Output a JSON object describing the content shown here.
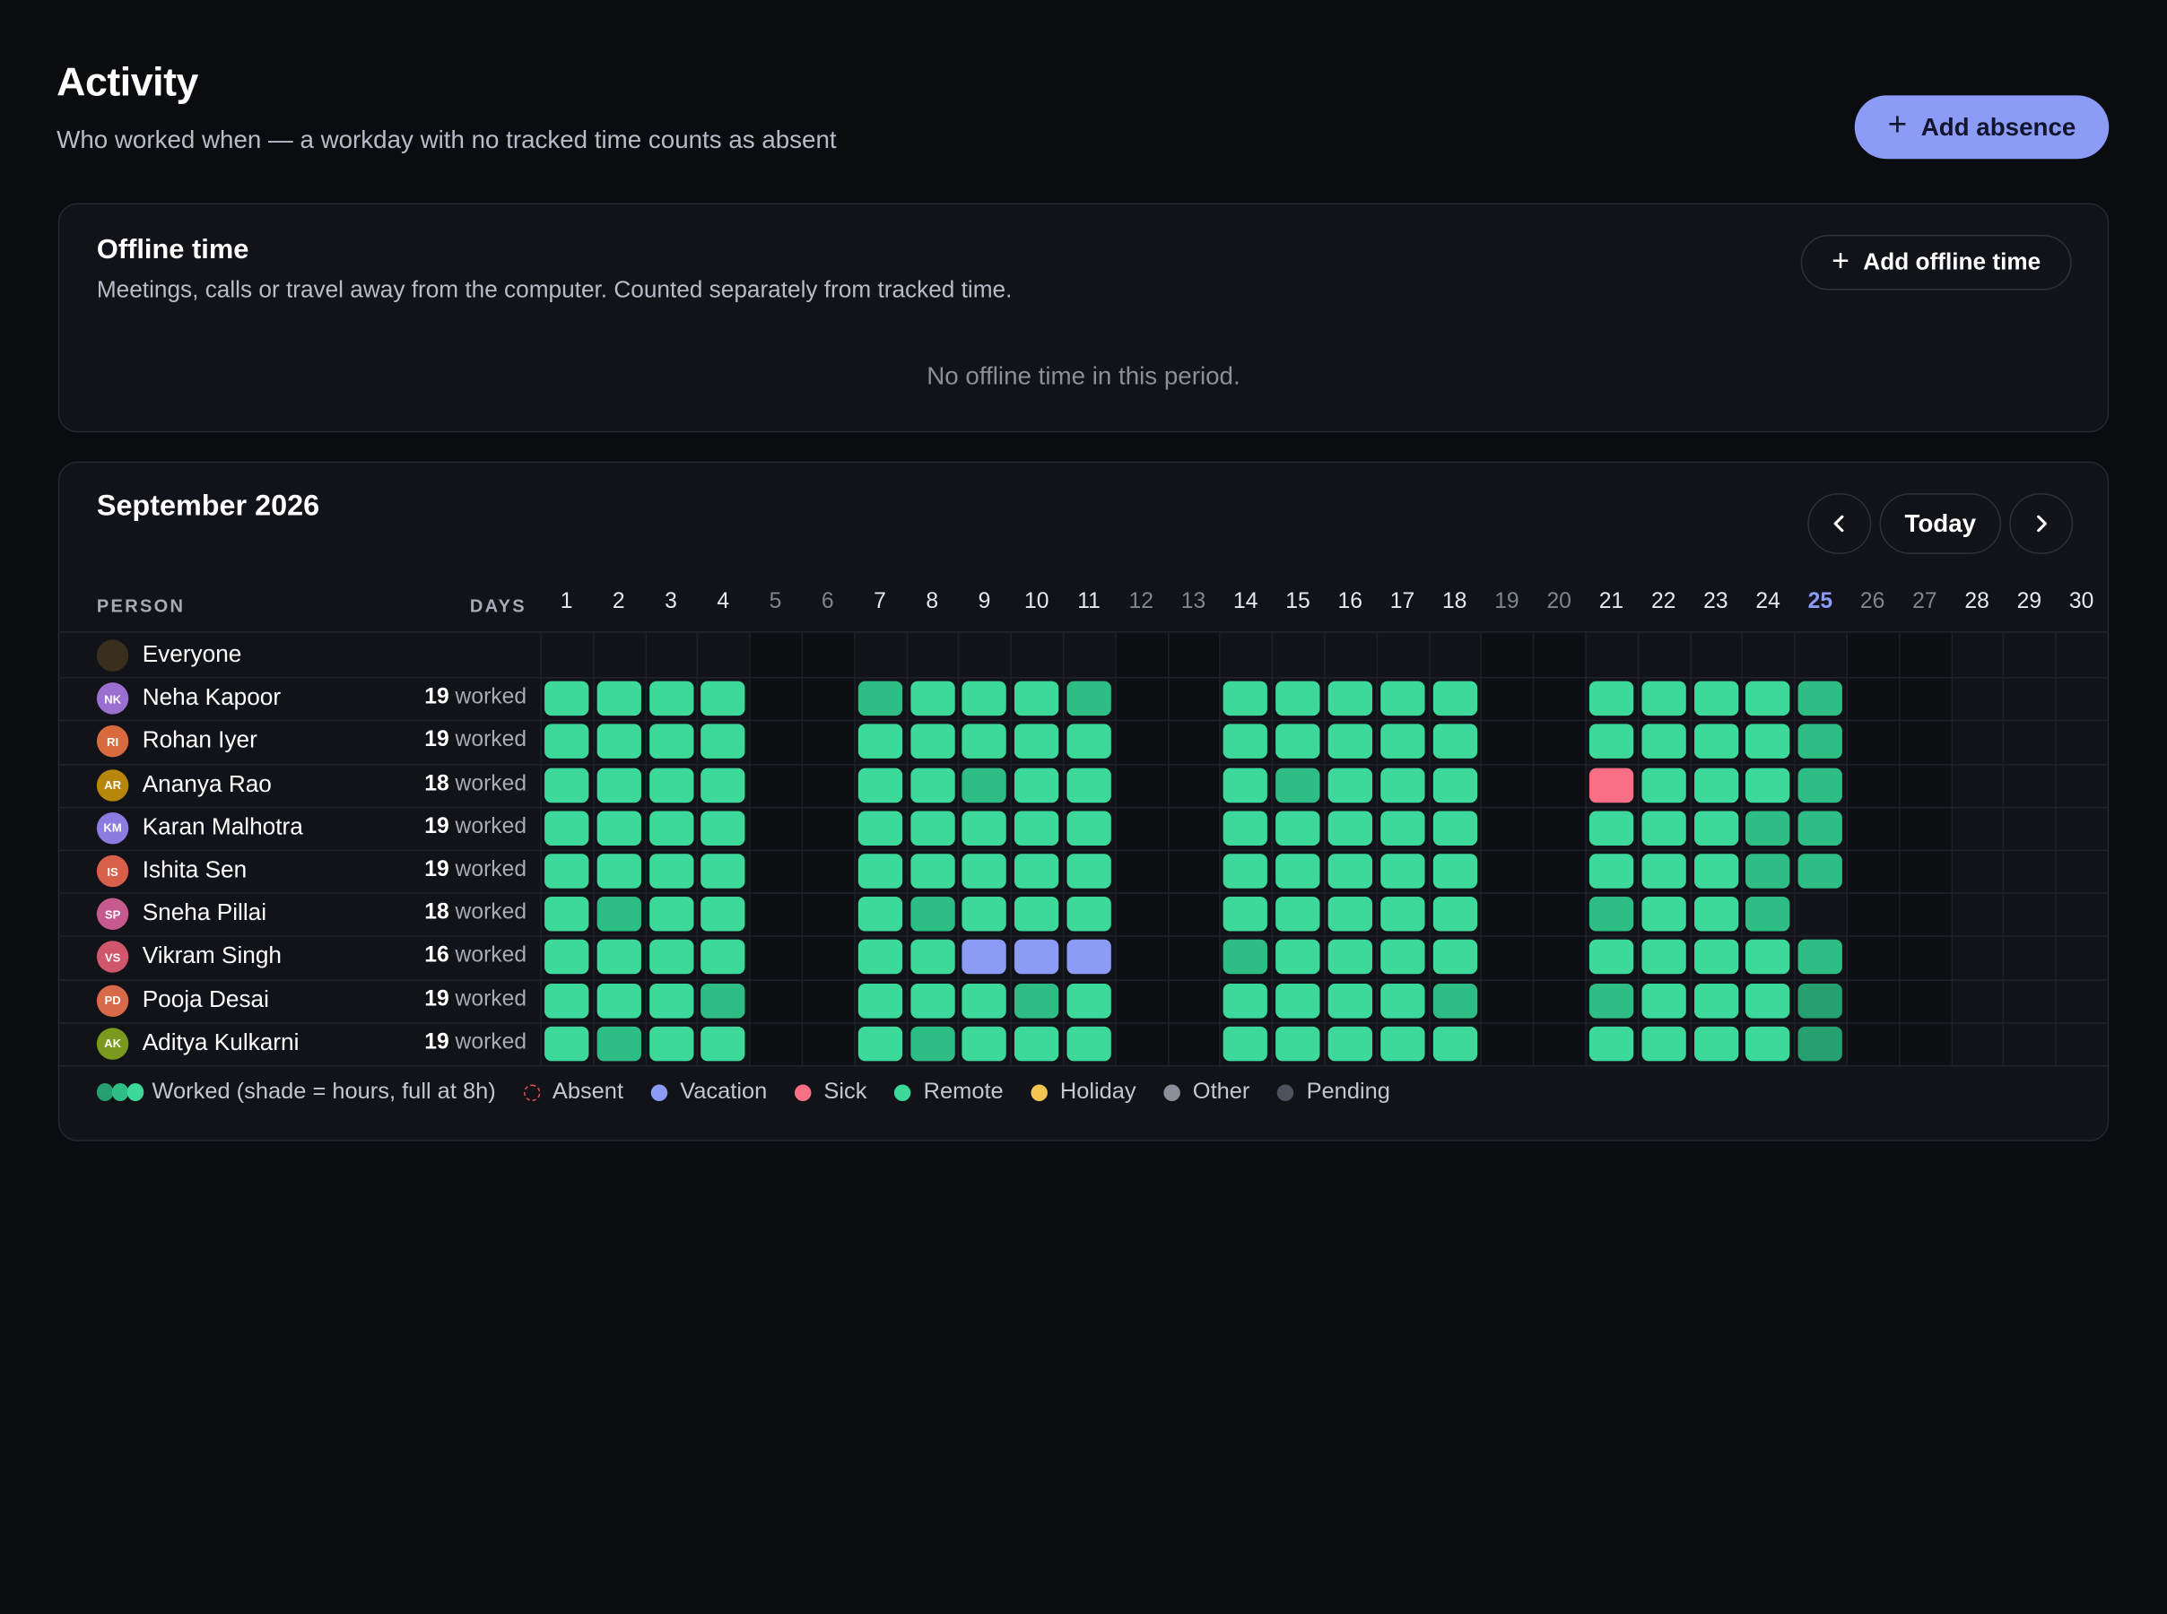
{
  "header": {
    "title": "Activity",
    "subtitle": "Who worked when — a workday with no tracked time counts as absent",
    "add_absence_label": "Add absence"
  },
  "offline": {
    "title": "Offline time",
    "subtitle": "Meetings, calls or travel away from the computer. Counted separately from tracked time.",
    "add_label": "Add offline time",
    "empty_text": "No offline time in this period."
  },
  "calendar": {
    "month_label": "September 2026",
    "today_label": "Today",
    "person_header": "PERSON",
    "days_header": "DAYS",
    "days": [
      1,
      2,
      3,
      4,
      5,
      6,
      7,
      8,
      9,
      10,
      11,
      12,
      13,
      14,
      15,
      16,
      17,
      18,
      19,
      20,
      21,
      22,
      23,
      24,
      25,
      26,
      27,
      28,
      29,
      30
    ],
    "weekend_days": [
      5,
      6,
      12,
      13,
      19,
      20,
      26,
      27
    ],
    "today_day": 25,
    "everyone_label": "Everyone",
    "worked_suffix": "worked",
    "people": [
      {
        "initials": "NK",
        "name": "Neha Kapoor",
        "worked": "19",
        "avatar_color": "#9b6fd0",
        "days": "MMMM..DMMMD..MMMMM..MMMMD....."
      },
      {
        "initials": "RI",
        "name": "Rohan Iyer",
        "worked": "19",
        "avatar_color": "#d86a3d",
        "days": "MMMM..MMMMM..MMMMM..MMMMD....."
      },
      {
        "initials": "AR",
        "name": "Ananya Rao",
        "worked": "18",
        "avatar_color": "#b8860b",
        "days": "MMMM..MMDMM..MDMMM..SMMMD....."
      },
      {
        "initials": "KM",
        "name": "Karan Malhotra",
        "worked": "19",
        "avatar_color": "#8c7be0",
        "days": "MMMM..MMMMM..MMMMM..MMMDD....."
      },
      {
        "initials": "IS",
        "name": "Ishita Sen",
        "worked": "19",
        "avatar_color": "#d8604a",
        "days": "MMMM..MMMMM..MMMMM..MMMDD....."
      },
      {
        "initials": "SP",
        "name": "Sneha Pillai",
        "worked": "18",
        "avatar_color": "#c65a8e",
        "days": "MDMM..MDMMM..MMMMM..DMMD......"
      },
      {
        "initials": "VS",
        "name": "Vikram Singh",
        "worked": "16",
        "avatar_color": "#d0566b",
        "days": "MMMM..MMVVV..DMMMM..MMMMD....."
      },
      {
        "initials": "PD",
        "name": "Pooja Desai",
        "worked": "19",
        "avatar_color": "#d86a4a",
        "days": "MMMD..MMMDM..MMMMD..DMMMX....."
      },
      {
        "initials": "AK",
        "name": "Aditya Kulkarni",
        "worked": "19",
        "avatar_color": "#7a9a1e",
        "days": "MDMM..MDMMM..MMMMM..MMMMX....."
      }
    ]
  },
  "colors": {
    "M": "#3dd99a",
    "D": "#2fbd86",
    "X": "#269f71",
    "V": "#8c9cf6",
    "S": "#fb6f84",
    "today": "#8c9cf6",
    "weekday_head": "#e6e8ee",
    "weekend_head": "#7f8591"
  },
  "legend": {
    "worked": "Worked (shade = hours, full at 8h)",
    "items": [
      {
        "label": "Absent",
        "color": "#e05252",
        "style": "dashed"
      },
      {
        "label": "Vacation",
        "color": "#8c9cf6",
        "style": "solid"
      },
      {
        "label": "Sick",
        "color": "#fb6f84",
        "style": "solid"
      },
      {
        "label": "Remote",
        "color": "#3dd99a",
        "style": "solid"
      },
      {
        "label": "Holiday",
        "color": "#f5c451",
        "style": "solid"
      },
      {
        "label": "Other",
        "color": "#8a8f99",
        "style": "solid"
      },
      {
        "label": "Pending",
        "color": "#4d525c",
        "style": "solid"
      }
    ]
  }
}
